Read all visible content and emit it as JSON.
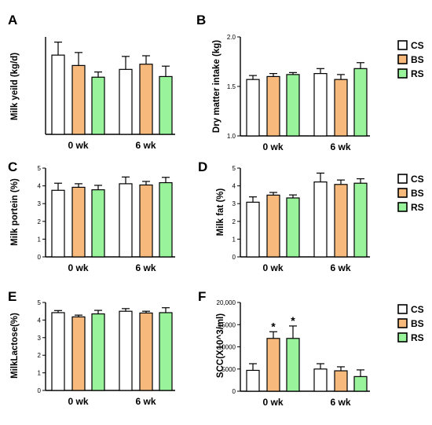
{
  "colors": {
    "CS": "#ffffff",
    "BS": "#f8b97c",
    "RS": "#98f39a",
    "stroke": "#000000"
  },
  "legend": [
    "CS",
    "BS",
    "RS"
  ],
  "chart_data": [
    {
      "id": "A",
      "letter": "A",
      "type": "bar",
      "ylabel": "Milk yeild (kg/d)",
      "ylim": [
        0,
        1.5
      ],
      "yticks": [],
      "ticklabels": [],
      "categories": [
        "0 wk",
        "6 wk"
      ],
      "series": [
        {
          "name": "CS",
          "values": [
            1.22,
            1.0
          ],
          "errors": [
            0.2,
            0.2
          ]
        },
        {
          "name": "BS",
          "values": [
            1.06,
            1.08
          ],
          "errors": [
            0.2,
            0.13
          ]
        },
        {
          "name": "RS",
          "values": [
            0.88,
            0.89
          ],
          "errors": [
            0.08,
            0.16
          ]
        }
      ],
      "significance": []
    },
    {
      "id": "B",
      "letter": "B",
      "type": "bar",
      "ylabel": "Dry matter intake (kg)",
      "ylim": [
        1.0,
        2.0
      ],
      "yticks": [
        1.0,
        1.5,
        2.0
      ],
      "ticklabels": [
        "1.0",
        "1.5",
        "2.0"
      ],
      "categories": [
        "0 wk",
        "6 wk"
      ],
      "series": [
        {
          "name": "CS",
          "values": [
            1.57,
            1.63
          ],
          "errors": [
            0.04,
            0.05
          ]
        },
        {
          "name": "BS",
          "values": [
            1.6,
            1.57
          ],
          "errors": [
            0.03,
            0.05
          ]
        },
        {
          "name": "RS",
          "values": [
            1.62,
            1.68
          ],
          "errors": [
            0.02,
            0.06
          ]
        }
      ],
      "significance": []
    },
    {
      "id": "C",
      "letter": "C",
      "type": "bar",
      "ylabel": "Milk portein (%)",
      "ylim": [
        0,
        5
      ],
      "yticks": [
        0,
        1,
        2,
        3,
        4,
        5
      ],
      "ticklabels": [
        "0",
        "1",
        "2",
        "3",
        "4",
        "5"
      ],
      "categories": [
        "0 wk",
        "6 wk"
      ],
      "series": [
        {
          "name": "CS",
          "values": [
            3.75,
            4.12
          ],
          "errors": [
            0.4,
            0.38
          ]
        },
        {
          "name": "BS",
          "values": [
            3.92,
            4.05
          ],
          "errors": [
            0.2,
            0.2
          ]
        },
        {
          "name": "RS",
          "values": [
            3.78,
            4.18
          ],
          "errors": [
            0.25,
            0.3
          ]
        }
      ],
      "significance": []
    },
    {
      "id": "D",
      "letter": "D",
      "type": "bar",
      "ylabel": "Milk fat (%)",
      "ylim": [
        0,
        5
      ],
      "yticks": [
        0,
        1,
        2,
        3,
        4,
        5
      ],
      "ticklabels": [
        "0",
        "1",
        "2",
        "3",
        "4",
        "5"
      ],
      "categories": [
        "0 wk",
        "6 wk"
      ],
      "series": [
        {
          "name": "CS",
          "values": [
            3.08,
            4.22
          ],
          "errors": [
            0.3,
            0.5
          ]
        },
        {
          "name": "BS",
          "values": [
            3.48,
            4.08
          ],
          "errors": [
            0.15,
            0.25
          ]
        },
        {
          "name": "RS",
          "values": [
            3.32,
            4.15
          ],
          "errors": [
            0.17,
            0.25
          ]
        }
      ],
      "significance": []
    },
    {
      "id": "E",
      "letter": "E",
      "type": "bar",
      "ylabel": "MilkLactose(%)",
      "ylim": [
        0,
        5
      ],
      "yticks": [
        0,
        1,
        2,
        3,
        4,
        5
      ],
      "ticklabels": [
        "0",
        "1",
        "2",
        "3",
        "4",
        "5"
      ],
      "categories": [
        "0 wk",
        "6 wk"
      ],
      "series": [
        {
          "name": "CS",
          "values": [
            4.42,
            4.5
          ],
          "errors": [
            0.12,
            0.15
          ]
        },
        {
          "name": "BS",
          "values": [
            4.18,
            4.4
          ],
          "errors": [
            0.1,
            0.1
          ]
        },
        {
          "name": "RS",
          "values": [
            4.35,
            4.42
          ],
          "errors": [
            0.2,
            0.28
          ]
        }
      ],
      "significance": []
    },
    {
      "id": "F",
      "letter": "F",
      "type": "bar",
      "ylabel": "SCC(X10^3/ml)",
      "ylim": [
        0,
        20000
      ],
      "yticks": [
        0,
        5000,
        10000,
        15000,
        20000
      ],
      "ticklabels": [
        "0",
        "5000",
        "10000",
        "15000",
        "20,000"
      ],
      "categories": [
        "0 wk",
        "6 wk"
      ],
      "series": [
        {
          "name": "CS",
          "values": [
            4700,
            5000
          ],
          "errors": [
            1500,
            1200
          ]
        },
        {
          "name": "BS",
          "values": [
            11900,
            4600
          ],
          "errors": [
            1500,
            900
          ]
        },
        {
          "name": "RS",
          "values": [
            11900,
            3300
          ],
          "errors": [
            2800,
            1500
          ]
        }
      ],
      "significance": [
        {
          "series": "BS",
          "category": "0 wk",
          "mark": "*"
        },
        {
          "series": "RS",
          "category": "0 wk",
          "mark": "*"
        }
      ]
    }
  ]
}
